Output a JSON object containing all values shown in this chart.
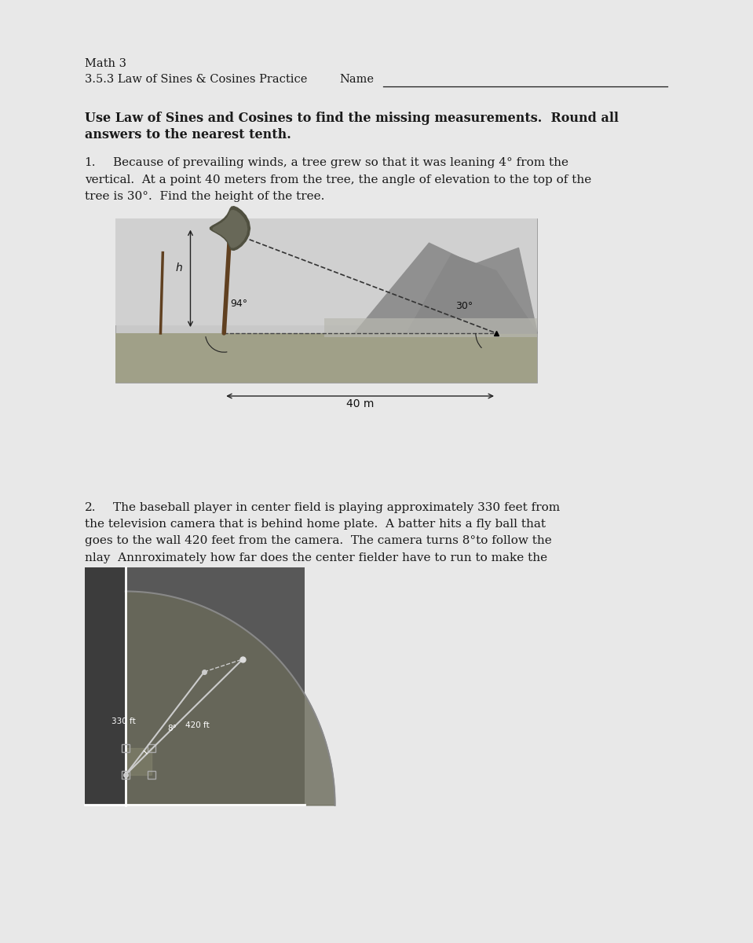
{
  "page_bg": "#e8e8e8",
  "content_bg": "#ffffff",
  "text_color": "#1a1a1a",
  "title_line1": "Math 3",
  "title_line2": "3.5.3 Law of Sines & Cosines Practice",
  "name_label": "Name",
  "inst_line1": "Use Law of Sines and Cosines to find the missing measurements.  Round all",
  "inst_line2": "answers to the nearest tenth.",
  "q1_num": "1.",
  "q1_l1": "Because of prevailing winds, a tree grew so that it was leaning 4° from the",
  "q1_l2": "vertical.  At a point 40 meters from the tree, the angle of elevation to the top of the",
  "q1_l3": "tree is 30°.  Find the height of the tree.",
  "q2_num": "2.",
  "q2_l1": "The baseball player in center field is playing approximately 330 feet from",
  "q2_l2": "the television camera that is behind home plate.  A batter hits a fly ball that",
  "q2_l3": "goes to the wall 420 feet from the camera.  The camera turns 8°to follow the",
  "q2_l4": "nlay  Annroximately how far does the center fielder have to run to make the",
  "img1_sky_top": "#d0d0d0",
  "img1_sky_bot": "#c0c0c0",
  "img1_ground": "#a8a890",
  "img1_mountain1": "#989898",
  "img1_mountain2": "#909090",
  "img2_bg_dark": "#3a3a3a",
  "img2_bg_mid": "#555555",
  "img2_field": "#606060"
}
